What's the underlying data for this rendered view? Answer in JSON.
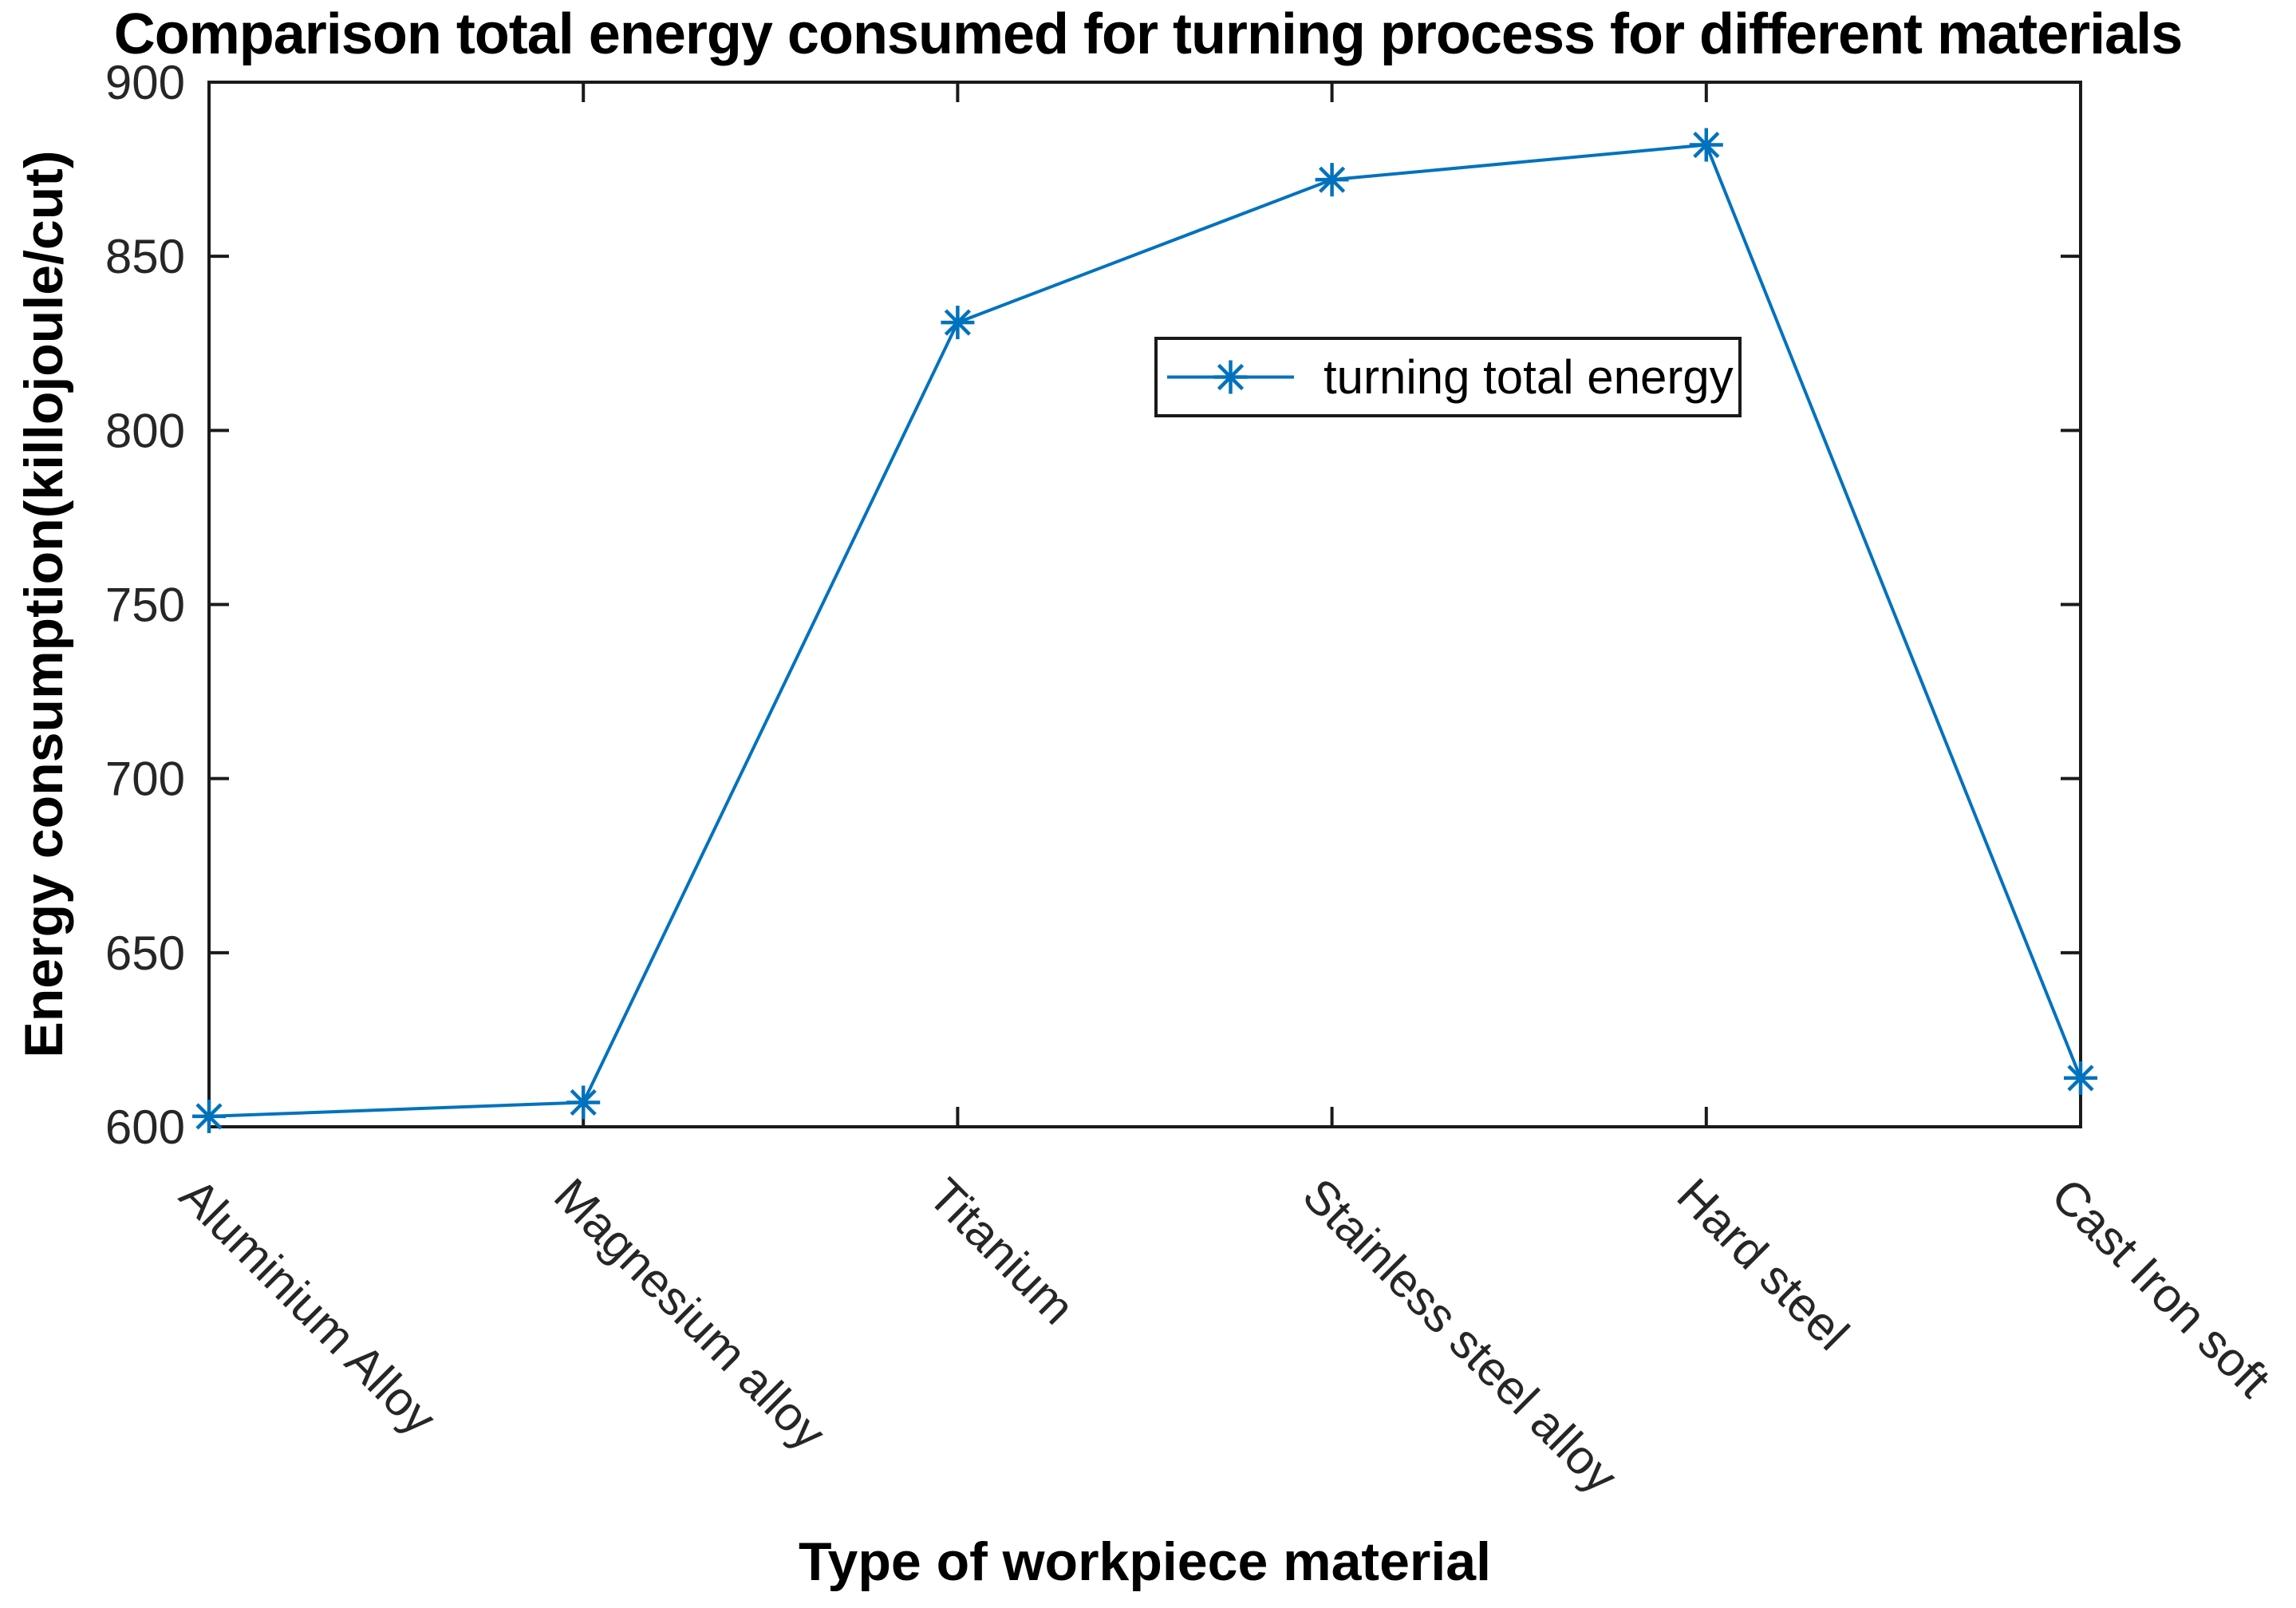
{
  "figure": {
    "background": "#ffffff"
  },
  "chart_data": {
    "type": "line",
    "title": "Comparison total energy consumed for turning process for different materials",
    "xlabel": "Type of workpiece material",
    "ylabel": "Energy consumption(killojoule/cut)",
    "categories": [
      "Aluminium Alloy",
      "Magnesium alloy",
      "Titanium",
      "Stainless steel alloy",
      "Hard steel",
      "Cast Iron soft"
    ],
    "series": [
      {
        "name": "turning total energy",
        "values": [
          603,
          607,
          831,
          872,
          882,
          614
        ],
        "color": "#0072BD",
        "marker": "asterisk"
      }
    ],
    "ylim": [
      600,
      900
    ],
    "yticks": [
      600,
      650,
      700,
      750,
      800,
      850,
      900
    ],
    "xtick_rotation_deg": -45,
    "grid": false,
    "legend": {
      "position": "inside-upper-middle",
      "entries": [
        "turning total energy"
      ]
    }
  },
  "colors": {
    "line": "#0072BD",
    "axis": "#1a1a1a",
    "tick_text": "#262626",
    "background": "#ffffff"
  }
}
